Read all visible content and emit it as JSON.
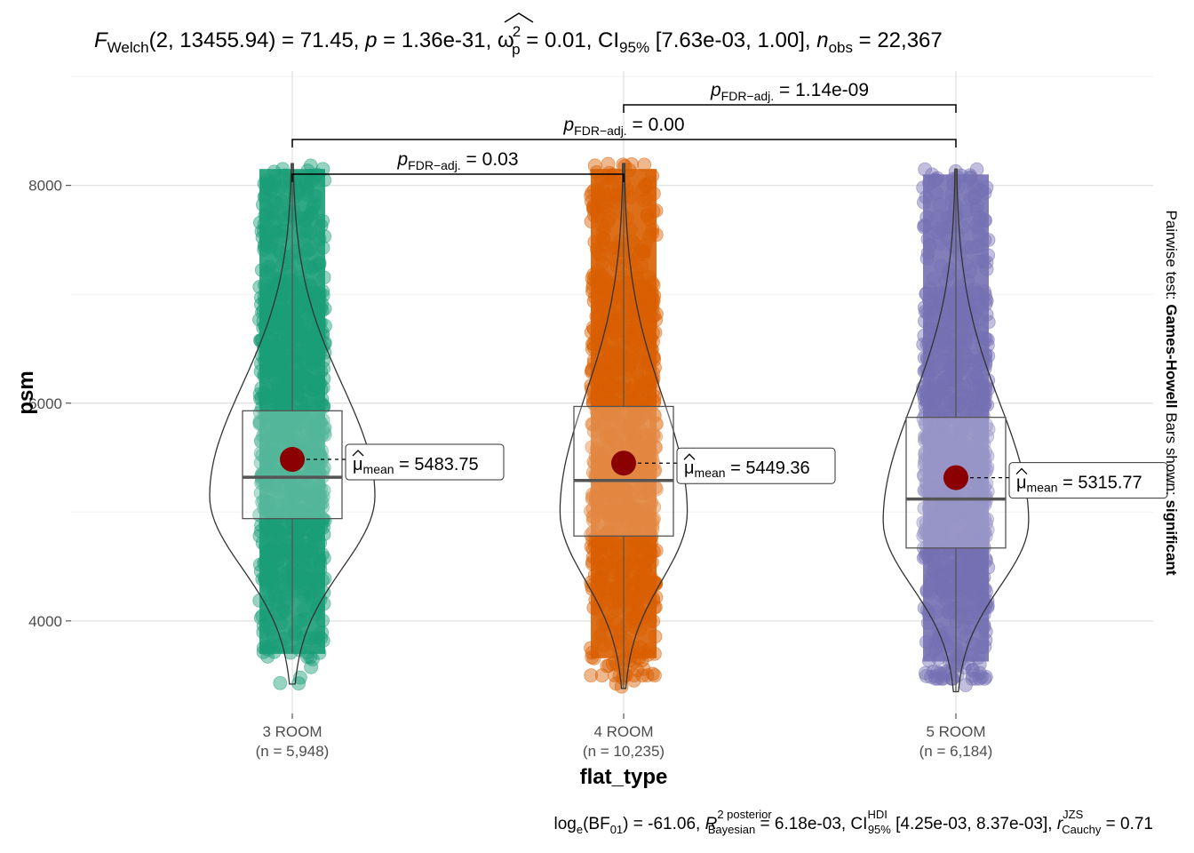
{
  "chart_data": {
    "type": "violin",
    "title_parts": {
      "stat_symbol": "F",
      "stat_sub": "Welch",
      "stat_args": "(2, 13455.94)",
      "stat_value": " = 71.45, ",
      "p_symbol": "p",
      "p_value": " = 1.36e-31, ",
      "omega": "ω",
      "omega_sup": "2",
      "omega_sub": "p",
      "omega_value": " = 0.01, CI",
      "ci_sub": "95%",
      "ci_value": " [7.63e-03, 1.00], ",
      "n_symbol": "n",
      "n_sub": "obs",
      "n_value": " = 22,367"
    },
    "caption_parts": {
      "log_text": "log",
      "log_sub": "e",
      "bf_open": "(BF",
      "bf_sub": "01",
      "bf_value": ") = -61.06, ",
      "r_symbol": "R",
      "r_sup": "2 posterior",
      "r_sub": "Bayesian",
      "r_value": " = 6.18e-03, CI",
      "hdi_sup": "HDI",
      "hdi_sub": "95%",
      "hdi_value": " [4.25e-03, 8.37e-03], ",
      "rc_symbol": "r",
      "rc_sup": "JZS",
      "rc_sub": "Cauchy",
      "rc_value": " = 0.71"
    },
    "xlabel": "flat_type",
    "ylabel": "psm",
    "right_label_prefix": "Pairwise test: ",
    "right_label_test": "Games-Howell",
    "right_label_mid": " Bars shown: ",
    "right_label_shown": "significant",
    "ylim": [
      3150,
      9050
    ],
    "y_ticks": [
      4000,
      6000,
      8000
    ],
    "y_tick_labels": [
      "4000",
      "6000",
      "8000"
    ],
    "grid": true,
    "groups": [
      {
        "category": "3 ROOM",
        "n_label": "(n = 5,948)",
        "color": "#1B9E77",
        "min": 3420,
        "max": 8200,
        "q1": 4940,
        "median": 5320,
        "q3": 5930,
        "whisker_low": 3700,
        "whisker_high": 8200,
        "mean": 5483.75,
        "mean_label_symbol": "μ",
        "mean_label_sub": "mean",
        "mean_label_value": " = 5483.75",
        "density_peak": 5150,
        "violin_max_width_frac": 1.0
      },
      {
        "category": "4 ROOM",
        "n_label": "(n = 10,235)",
        "color": "#D95F02",
        "min": 3380,
        "max": 8200,
        "q1": 4780,
        "median": 5290,
        "q3": 5970,
        "whisker_low": 3380,
        "whisker_high": 8200,
        "mean": 5449.36,
        "mean_label_symbol": "μ",
        "mean_label_sub": "mean",
        "mean_label_value": " = 5449.36",
        "density_peak": 5000,
        "violin_max_width_frac": 0.77
      },
      {
        "category": "5 ROOM",
        "n_label": "(n = 6,184)",
        "color": "#7570B3",
        "min": 3350,
        "max": 8150,
        "q1": 4670,
        "median": 5120,
        "q3": 5870,
        "whisker_low": 3350,
        "whisker_high": 8150,
        "mean": 5315.77,
        "mean_label_symbol": "μ",
        "mean_label_sub": "mean",
        "mean_label_value": " = 5315.77",
        "density_peak": 4920,
        "violin_max_width_frac": 0.88
      }
    ],
    "pairwise": [
      {
        "from": 0,
        "to": 1,
        "symbol": "p",
        "sub": "FDR−adj.",
        "value": " = 0.03"
      },
      {
        "from": 0,
        "to": 2,
        "symbol": "p",
        "sub": "FDR−adj.",
        "value": " = 0.00"
      },
      {
        "from": 1,
        "to": 2,
        "symbol": "p",
        "sub": "FDR−adj.",
        "value": " = 1.14e-09"
      }
    ],
    "mean_point_color": "#8B0000"
  }
}
